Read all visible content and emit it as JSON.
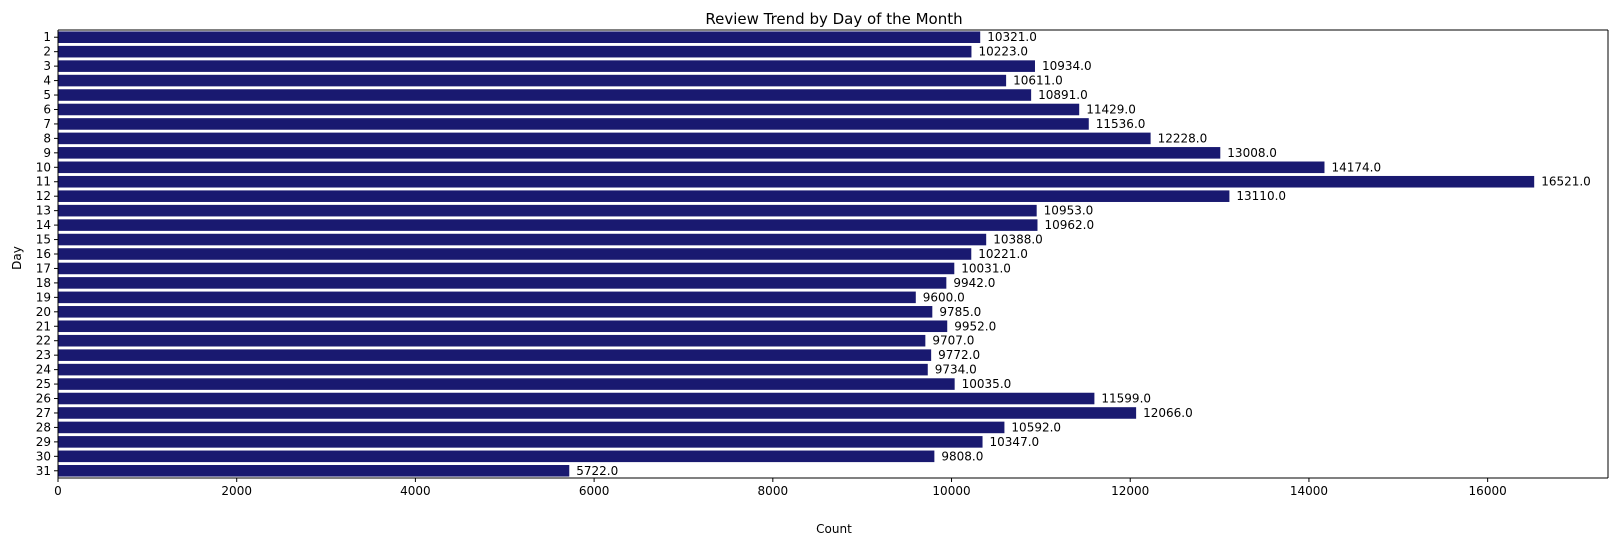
{
  "chart_data": {
    "type": "bar",
    "orientation": "horizontal",
    "title": "Review Trend by Day of the Month",
    "xlabel": "Count",
    "ylabel": "Day",
    "categories": [
      "1",
      "2",
      "3",
      "4",
      "5",
      "6",
      "7",
      "8",
      "9",
      "10",
      "11",
      "12",
      "13",
      "14",
      "15",
      "16",
      "17",
      "18",
      "19",
      "20",
      "21",
      "22",
      "23",
      "24",
      "25",
      "26",
      "27",
      "28",
      "29",
      "30",
      "31"
    ],
    "values": [
      10321,
      10223,
      10934,
      10611,
      10891,
      11429,
      11536,
      12228,
      13008,
      14174,
      16521,
      13110,
      10953,
      10962,
      10388,
      10221,
      10031,
      9942,
      9600,
      9785,
      9952,
      9707,
      9772,
      9734,
      10035,
      11599,
      12066,
      10592,
      10347,
      9808,
      5722
    ],
    "data_labels": [
      "10321.0",
      "10223.0",
      "10934.0",
      "10611.0",
      "10891.0",
      "11429.0",
      "11536.0",
      "12228.0",
      "13008.0",
      "14174.0",
      "16521.0",
      "13110.0",
      "10953.0",
      "10962.0",
      "10388.0",
      "10221.0",
      "10031.0",
      "9942.0",
      "9600.0",
      "9785.0",
      "9952.0",
      "9707.0",
      "9772.0",
      "9734.0",
      "10035.0",
      "11599.0",
      "12066.0",
      "10592.0",
      "10347.0",
      "9808.0",
      "5722.0"
    ],
    "xlim": [
      0,
      17347
    ],
    "xticks": [
      0,
      2000,
      4000,
      6000,
      8000,
      10000,
      12000,
      14000,
      16000
    ],
    "bar_color": "#191970",
    "grid": false,
    "legend": "none"
  }
}
